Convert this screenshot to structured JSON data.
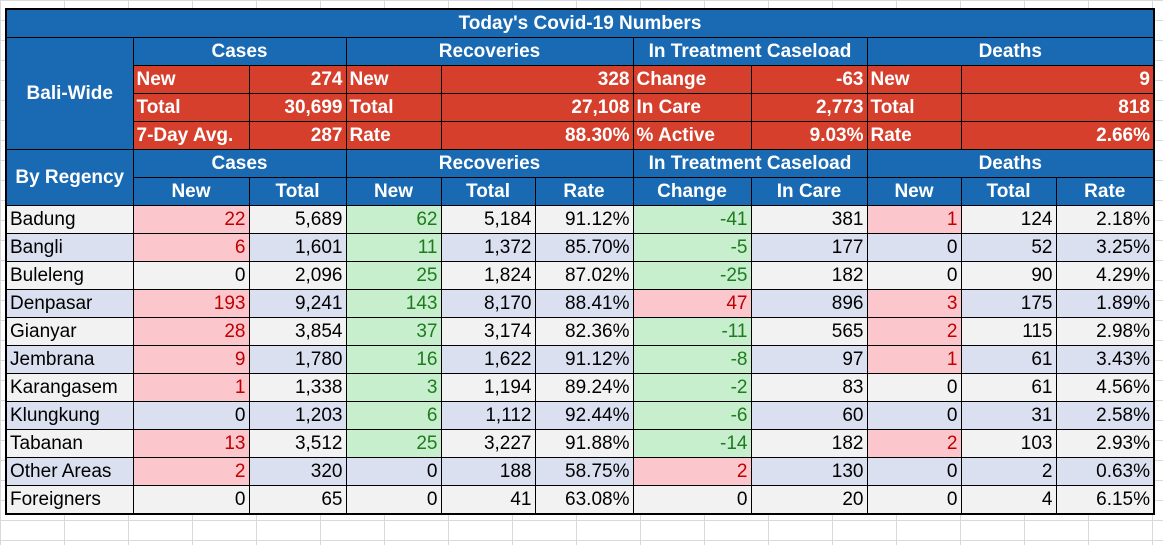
{
  "title": "Today's Covid-19 Numbers",
  "groups": [
    "Cases",
    "Recoveries",
    "In Treatment Caseload",
    "Deaths"
  ],
  "bali_wide": {
    "label": "Bali-Wide",
    "rows": [
      {
        "c_l": "New",
        "c_v": "274",
        "r_l": "New",
        "r_v": "328",
        "t_l": "Change",
        "t_v": "-63",
        "d_l": "New",
        "d_v": "9"
      },
      {
        "c_l": "Total",
        "c_v": "30,699",
        "r_l": "Total",
        "r_v": "27,108",
        "t_l": "In Care",
        "t_v": "2,773",
        "d_l": "Total",
        "d_v": "818"
      },
      {
        "c_l": "7-Day Avg.",
        "c_v": "287",
        "r_l": "Rate",
        "r_v": "88.30%",
        "t_l": "% Active",
        "t_v": "9.03%",
        "d_l": "Rate",
        "d_v": "2.66%"
      }
    ]
  },
  "regency": {
    "label": "By Regency",
    "subheaders": [
      "New",
      "Total",
      "New",
      "Total",
      "Rate",
      "Change",
      "In Care",
      "New",
      "Total",
      "Rate"
    ],
    "rows": [
      {
        "name": "Badung",
        "c_new": "22",
        "c_total": "5,689",
        "r_new": "62",
        "r_total": "5,184",
        "r_rate": "91.12%",
        "t_change": "-41",
        "t_care": "381",
        "d_new": "1",
        "d_total": "124",
        "d_rate": "2.18%"
      },
      {
        "name": "Bangli",
        "c_new": "6",
        "c_total": "1,601",
        "r_new": "11",
        "r_total": "1,372",
        "r_rate": "85.70%",
        "t_change": "-5",
        "t_care": "177",
        "d_new": "0",
        "d_total": "52",
        "d_rate": "3.25%"
      },
      {
        "name": "Buleleng",
        "c_new": "0",
        "c_total": "2,096",
        "r_new": "25",
        "r_total": "1,824",
        "r_rate": "87.02%",
        "t_change": "-25",
        "t_care": "182",
        "d_new": "0",
        "d_total": "90",
        "d_rate": "4.29%"
      },
      {
        "name": "Denpasar",
        "c_new": "193",
        "c_total": "9,241",
        "r_new": "143",
        "r_total": "8,170",
        "r_rate": "88.41%",
        "t_change": "47",
        "t_care": "896",
        "d_new": "3",
        "d_total": "175",
        "d_rate": "1.89%"
      },
      {
        "name": "Gianyar",
        "c_new": "28",
        "c_total": "3,854",
        "r_new": "37",
        "r_total": "3,174",
        "r_rate": "82.36%",
        "t_change": "-11",
        "t_care": "565",
        "d_new": "2",
        "d_total": "115",
        "d_rate": "2.98%"
      },
      {
        "name": "Jembrana",
        "c_new": "9",
        "c_total": "1,780",
        "r_new": "16",
        "r_total": "1,622",
        "r_rate": "91.12%",
        "t_change": "-8",
        "t_care": "97",
        "d_new": "1",
        "d_total": "61",
        "d_rate": "3.43%"
      },
      {
        "name": "Karangasem",
        "c_new": "1",
        "c_total": "1,338",
        "r_new": "3",
        "r_total": "1,194",
        "r_rate": "89.24%",
        "t_change": "-2",
        "t_care": "83",
        "d_new": "0",
        "d_total": "61",
        "d_rate": "4.56%"
      },
      {
        "name": "Klungkung",
        "c_new": "0",
        "c_total": "1,203",
        "r_new": "6",
        "r_total": "1,112",
        "r_rate": "92.44%",
        "t_change": "-6",
        "t_care": "60",
        "d_new": "0",
        "d_total": "31",
        "d_rate": "2.58%"
      },
      {
        "name": "Tabanan",
        "c_new": "13",
        "c_total": "3,512",
        "r_new": "25",
        "r_total": "3,227",
        "r_rate": "91.88%",
        "t_change": "-14",
        "t_care": "182",
        "d_new": "2",
        "d_total": "103",
        "d_rate": "2.93%"
      },
      {
        "name": "Other Areas",
        "c_new": "2",
        "c_total": "320",
        "r_new": "0",
        "r_total": "188",
        "r_rate": "58.75%",
        "t_change": "2",
        "t_care": "130",
        "d_new": "0",
        "d_total": "2",
        "d_rate": "0.63%"
      },
      {
        "name": "Foreigners",
        "c_new": "0",
        "c_total": "65",
        "r_new": "0",
        "r_total": "41",
        "r_rate": "63.08%",
        "t_change": "0",
        "t_care": "20",
        "d_new": "0",
        "d_total": "4",
        "d_rate": "6.15%"
      }
    ]
  },
  "colors": {
    "header_blue": "#1a6ab3",
    "bali_red": "#d63f2c",
    "increase_pink": "#fbc7cd",
    "increase_text": "#c00000",
    "recovery_green": "#c7efcd",
    "recovery_text": "#1e7b1e"
  }
}
